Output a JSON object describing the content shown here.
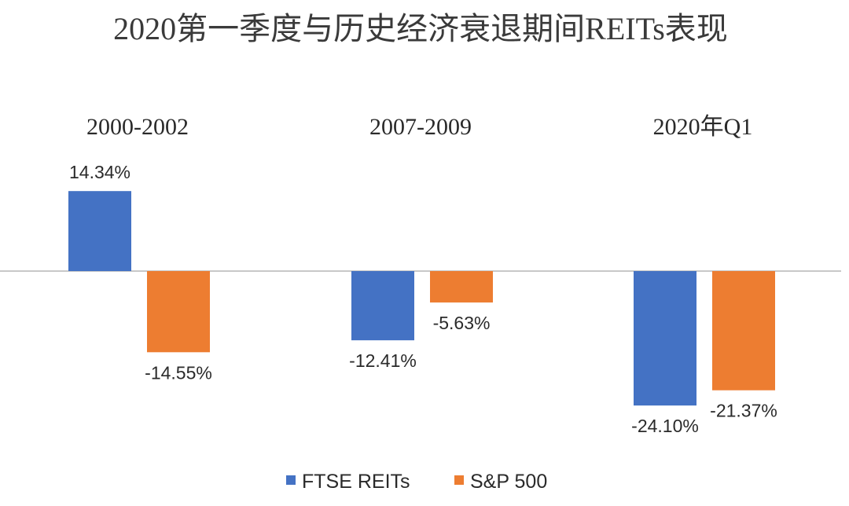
{
  "chart_data": {
    "type": "bar",
    "title": "2020第一季度与历史经济衰退期间REITs表现",
    "categories": [
      "2000-2002",
      "2007-2009",
      "2020年Q1"
    ],
    "series": [
      {
        "name": "FTSE REITs",
        "color": "#4472C4",
        "values": [
          14.34,
          -12.41,
          -24.1
        ],
        "labels": [
          "14.34%",
          "-12.41%",
          "-24.10%"
        ]
      },
      {
        "name": "S&P 500",
        "color": "#ED7D31",
        "values": [
          -14.55,
          -5.63,
          -21.37
        ],
        "labels": [
          "-14.55%",
          "-5.63%",
          "-21.37%"
        ]
      }
    ],
    "ylim": [
      -30,
      30
    ],
    "grid": false,
    "legend_position": "bottom",
    "category_label_position": "top"
  }
}
